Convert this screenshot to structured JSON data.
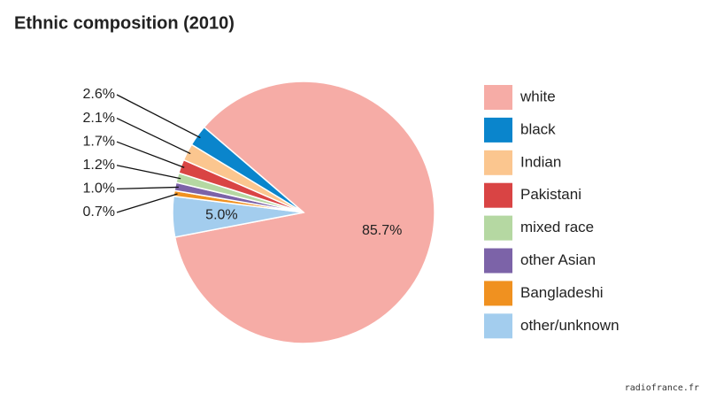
{
  "chart_data": {
    "type": "pie",
    "title": "Ethnic composition (2010)",
    "categories": [
      "white",
      "black",
      "Indian",
      "Pakistani",
      "mixed race",
      "other Asian",
      "Bangladeshi",
      "other/unknown"
    ],
    "values": [
      85.7,
      2.6,
      2.1,
      1.7,
      1.2,
      1.0,
      0.7,
      5.0
    ],
    "value_labels": [
      "85.7%",
      "2.6%",
      "2.1%",
      "1.7%",
      "1.2%",
      "1.0%",
      "0.7%",
      "5.0%"
    ],
    "colors": [
      "#f6aca6",
      "#0a85cc",
      "#fbc68f",
      "#d94444",
      "#b5d8a2",
      "#7c63a8",
      "#f09120",
      "#a3cdee"
    ],
    "legend": "right"
  },
  "source": "radiofrance.fr"
}
